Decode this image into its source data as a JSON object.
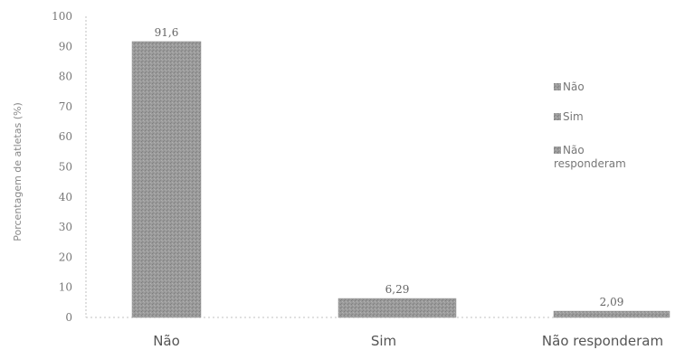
{
  "chart_data": {
    "type": "bar",
    "title": "",
    "xlabel": "",
    "ylabel": "Porcentagem de atletas (%)",
    "categories": [
      "Não",
      "Sim",
      "Não responderam"
    ],
    "values": [
      91.6,
      6.29,
      2.09
    ],
    "value_labels": [
      "91,6",
      "6,29",
      "2,09"
    ],
    "ylim": [
      0,
      100
    ],
    "yticks": [
      0,
      10,
      20,
      30,
      40,
      50,
      60,
      70,
      80,
      90,
      100
    ],
    "grid": false,
    "legend": {
      "placement": "right",
      "entries": [
        {
          "label_lines": [
            "Não"
          ]
        },
        {
          "label_lines": [
            "Sim"
          ]
        },
        {
          "label_lines": [
            "Não",
            "responderam"
          ]
        }
      ]
    },
    "colors": {
      "bar": "#9a9a9a",
      "axis": "#aaaaaa"
    }
  }
}
